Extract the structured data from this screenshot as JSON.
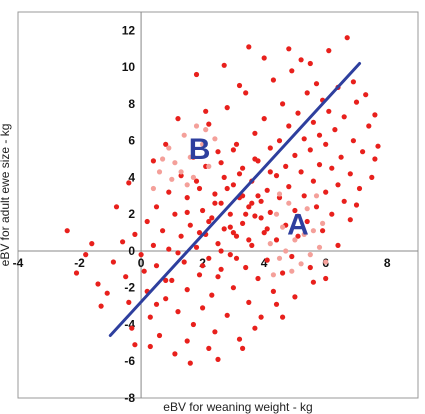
{
  "chart_data": {
    "type": "scatter",
    "xlabel": "eBV for weaning weight - kg",
    "ylabel": "eBV for adult ewe size - kg",
    "xlim": [
      -4,
      9
    ],
    "ylim": [
      -8,
      13
    ],
    "x_ticks": [
      -4,
      -2,
      0,
      2,
      4,
      6,
      8
    ],
    "y_ticks": [
      -8,
      -6,
      -4,
      -2,
      0,
      2,
      4,
      6,
      8,
      10,
      12
    ],
    "x_tick_labels": [
      "-4",
      "-2",
      "0",
      "2",
      "4",
      "6",
      "8"
    ],
    "y_tick_labels": [
      "-8",
      "-6",
      "-4",
      "-2",
      "0",
      "2",
      "4",
      "6",
      "8",
      "10",
      "12"
    ],
    "grid": false,
    "colors": {
      "main_points": "#e8201c",
      "highlight_points": "#f4a09a",
      "trend_line": "#2e3f9e",
      "labels": "#2e3f9e",
      "axis": "#888888"
    },
    "trend_line": {
      "x": [
        -1.0,
        7.1
      ],
      "y": [
        -4.6,
        10.2
      ]
    },
    "annotations": [
      {
        "text": "B",
        "x": 1.9,
        "y": 5.6
      },
      {
        "text": "A",
        "x": 5.1,
        "y": 1.5
      }
    ],
    "series": [
      {
        "role": "main",
        "points": [
          [
            -2.1,
            -1.2
          ],
          [
            -1.6,
            0.4
          ],
          [
            -1.4,
            -1.8
          ],
          [
            -1.1,
            -2.3
          ],
          [
            -1.3,
            -3.0
          ],
          [
            -0.9,
            -0.6
          ],
          [
            -0.6,
            0.5
          ],
          [
            -0.5,
            -1.4
          ],
          [
            -0.4,
            -2.8
          ],
          [
            -0.3,
            -4.2
          ],
          [
            -0.2,
            -5.1
          ],
          [
            -0.2,
            0.9
          ],
          [
            0.0,
            -0.2
          ],
          [
            0.1,
            -1.1
          ],
          [
            0.2,
            -2.2
          ],
          [
            0.2,
            1.6
          ],
          [
            0.3,
            -3.6
          ],
          [
            0.4,
            0.3
          ],
          [
            0.5,
            -0.8
          ],
          [
            0.5,
            2.4
          ],
          [
            0.6,
            -4.6
          ],
          [
            0.7,
            1.1
          ],
          [
            0.8,
            -2.6
          ],
          [
            0.9,
            0.1
          ],
          [
            0.9,
            3.2
          ],
          [
            1.0,
            -1.6
          ],
          [
            1.1,
            -5.6
          ],
          [
            1.1,
            2.0
          ],
          [
            1.2,
            -3.3
          ],
          [
            1.3,
            0.8
          ],
          [
            1.3,
            4.1
          ],
          [
            1.4,
            -0.6
          ],
          [
            1.5,
            2.9
          ],
          [
            1.5,
            -2.1
          ],
          [
            1.6,
            1.4
          ],
          [
            1.7,
            -4.0
          ],
          [
            1.7,
            5.1
          ],
          [
            1.8,
            0.2
          ],
          [
            1.9,
            3.4
          ],
          [
            1.9,
            -1.3
          ],
          [
            2.0,
            2.2
          ],
          [
            2.0,
            -3.1
          ],
          [
            2.1,
            0.9
          ],
          [
            2.1,
            4.6
          ],
          [
            2.2,
            -0.4
          ],
          [
            2.2,
            6.9
          ],
          [
            2.3,
            1.8
          ],
          [
            2.3,
            -2.4
          ],
          [
            2.4,
            3.1
          ],
          [
            2.4,
            -4.4
          ],
          [
            2.5,
            0.4
          ],
          [
            2.5,
            5.4
          ],
          [
            2.6,
            2.6
          ],
          [
            2.6,
            -1.0
          ],
          [
            2.7,
            1.2
          ],
          [
            2.7,
            4.0
          ],
          [
            2.8,
            -3.5
          ],
          [
            2.8,
            7.8
          ],
          [
            2.9,
            2.0
          ],
          [
            2.9,
            -0.2
          ],
          [
            3.0,
            3.6
          ],
          [
            3.0,
            -2.0
          ],
          [
            3.1,
            0.8
          ],
          [
            3.1,
            5.8
          ],
          [
            3.2,
            2.9
          ],
          [
            3.2,
            -4.8
          ],
          [
            3.3,
            1.5
          ],
          [
            3.3,
            4.5
          ],
          [
            3.4,
            -0.9
          ],
          [
            3.4,
            8.6
          ],
          [
            3.5,
            2.4
          ],
          [
            3.5,
            -2.8
          ],
          [
            3.6,
            3.8
          ],
          [
            3.6,
            0.3
          ],
          [
            3.7,
            6.4
          ],
          [
            3.7,
            1.9
          ],
          [
            3.8,
            -1.5
          ],
          [
            3.8,
            4.9
          ],
          [
            3.9,
            2.7
          ],
          [
            3.9,
            -3.6
          ],
          [
            4.0,
            1.0
          ],
          [
            4.0,
            7.2
          ],
          [
            4.1,
            3.3
          ],
          [
            4.1,
            -0.5
          ],
          [
            4.2,
            5.6
          ],
          [
            4.2,
            2.1
          ],
          [
            4.3,
            -2.2
          ],
          [
            4.3,
            9.3
          ],
          [
            4.4,
            4.1
          ],
          [
            4.4,
            0.6
          ],
          [
            4.5,
            6.0
          ],
          [
            4.5,
            2.9
          ],
          [
            4.6,
            -1.2
          ],
          [
            4.6,
            8.0
          ],
          [
            4.7,
            4.6
          ],
          [
            4.7,
            1.4
          ],
          [
            4.8,
            6.8
          ],
          [
            4.8,
            3.5
          ],
          [
            4.9,
            -0.3
          ],
          [
            4.9,
            9.8
          ],
          [
            5.0,
            5.2
          ],
          [
            5.0,
            2.2
          ],
          [
            5.1,
            7.5
          ],
          [
            5.1,
            0.8
          ],
          [
            5.2,
            4.3
          ],
          [
            5.2,
            10.4
          ],
          [
            5.3,
            6.1
          ],
          [
            5.3,
            3.0
          ],
          [
            5.4,
            8.6
          ],
          [
            5.4,
            1.6
          ],
          [
            5.5,
            5.5
          ],
          [
            5.5,
            -0.9
          ],
          [
            5.6,
            7.0
          ],
          [
            5.6,
            3.8
          ],
          [
            5.7,
            9.1
          ],
          [
            5.7,
            2.4
          ],
          [
            5.8,
            6.3
          ],
          [
            5.8,
            4.7
          ],
          [
            5.9,
            8.2
          ],
          [
            5.9,
            1.1
          ],
          [
            6.0,
            5.8
          ],
          [
            6.0,
            3.2
          ],
          [
            6.1,
            7.6
          ],
          [
            6.1,
            10.9
          ],
          [
            6.2,
            4.5
          ],
          [
            6.2,
            2.0
          ],
          [
            6.3,
            6.6
          ],
          [
            6.4,
            8.9
          ],
          [
            6.4,
            3.6
          ],
          [
            6.5,
            5.1
          ],
          [
            6.6,
            7.3
          ],
          [
            6.6,
            2.7
          ],
          [
            6.7,
            11.6
          ],
          [
            6.8,
            4.2
          ],
          [
            6.9,
            6.0
          ],
          [
            7.0,
            8.1
          ],
          [
            7.1,
            3.4
          ],
          [
            7.2,
            5.4
          ],
          [
            7.4,
            6.8
          ],
          [
            7.5,
            4.0
          ],
          [
            7.6,
            7.4
          ],
          [
            7.7,
            5.7
          ],
          [
            1.6,
            -6.1
          ],
          [
            0.3,
            -5.2
          ],
          [
            2.5,
            -5.9
          ],
          [
            3.3,
            -5.3
          ],
          [
            4.6,
            -3.6
          ],
          [
            5.0,
            -2.5
          ],
          [
            6.0,
            -1.5
          ],
          [
            0.8,
            5.8
          ],
          [
            1.2,
            7.2
          ],
          [
            1.8,
            9.6
          ],
          [
            2.7,
            10.1
          ],
          [
            3.5,
            11.1
          ],
          [
            0.4,
            4.9
          ],
          [
            -0.8,
            2.4
          ],
          [
            -0.4,
            3.7
          ],
          [
            -1.8,
            -0.2
          ],
          [
            -2.4,
            1.1
          ],
          [
            2.1,
            7.6
          ],
          [
            3.2,
            9.0
          ],
          [
            4.0,
            10.5
          ],
          [
            4.8,
            11.0
          ],
          [
            5.5,
            10.2
          ],
          [
            6.9,
            9.2
          ],
          [
            7.3,
            8.5
          ],
          [
            7.6,
            5.0
          ],
          [
            1.5,
            -4.9
          ],
          [
            2.2,
            -5.3
          ],
          [
            3.7,
            -4.2
          ],
          [
            4.4,
            -2.9
          ],
          [
            5.6,
            -1.7
          ],
          [
            6.4,
            0.3
          ],
          [
            6.8,
            1.7
          ],
          [
            7.0,
            2.5
          ],
          [
            2.6,
            0.0
          ],
          [
            3.0,
            1.0
          ],
          [
            3.4,
            2.0
          ],
          [
            3.8,
            3.0
          ],
          [
            2.4,
            2.6
          ],
          [
            2.8,
            3.4
          ],
          [
            3.2,
            4.2
          ],
          [
            1.9,
            1.0
          ],
          [
            2.2,
            1.6
          ],
          [
            2.9,
            1.3
          ],
          [
            3.3,
            3.0
          ],
          [
            3.6,
            2.6
          ],
          [
            3.9,
            1.8
          ],
          [
            2.0,
            -0.8
          ],
          [
            2.5,
            -1.4
          ],
          [
            3.1,
            -0.4
          ],
          [
            3.5,
            0.6
          ],
          [
            4.1,
            1.2
          ],
          [
            4.2,
            4.3
          ],
          [
            3.7,
            5.0
          ],
          [
            3.0,
            5.5
          ],
          [
            2.6,
            4.8
          ],
          [
            1.8,
            3.8
          ],
          [
            1.5,
            2.1
          ],
          [
            1.2,
            -0.1
          ],
          [
            0.8,
            -1.6
          ],
          [
            0.5,
            -2.9
          ]
        ]
      },
      {
        "role": "highlighted",
        "points": [
          [
            0.9,
            5.6
          ],
          [
            1.1,
            4.8
          ],
          [
            1.4,
            6.3
          ],
          [
            1.6,
            5.1
          ],
          [
            1.8,
            6.8
          ],
          [
            2.0,
            5.8
          ],
          [
            2.2,
            4.6
          ],
          [
            2.4,
            6.1
          ],
          [
            1.0,
            3.9
          ],
          [
            1.3,
            4.3
          ],
          [
            0.7,
            5.0
          ],
          [
            1.7,
            4.0
          ],
          [
            2.1,
            6.6
          ],
          [
            1.5,
            3.6
          ],
          [
            0.6,
            4.3
          ],
          [
            0.4,
            3.4
          ],
          [
            4.2,
            0.4
          ],
          [
            4.4,
            2.0
          ],
          [
            4.5,
            -0.4
          ],
          [
            4.6,
            1.3
          ],
          [
            4.7,
            0.0
          ],
          [
            4.8,
            2.6
          ],
          [
            4.9,
            -1.1
          ],
          [
            5.0,
            0.6
          ],
          [
            5.1,
            1.9
          ],
          [
            5.2,
            -0.7
          ],
          [
            5.3,
            0.9
          ],
          [
            5.4,
            2.3
          ],
          [
            5.5,
            -0.2
          ],
          [
            5.6,
            1.1
          ],
          [
            5.7,
            3.0
          ],
          [
            5.8,
            0.2
          ],
          [
            4.3,
            -1.3
          ],
          [
            4.5,
            3.1
          ],
          [
            5.9,
            1.5
          ],
          [
            6.0,
            -0.6
          ]
        ]
      }
    ]
  }
}
